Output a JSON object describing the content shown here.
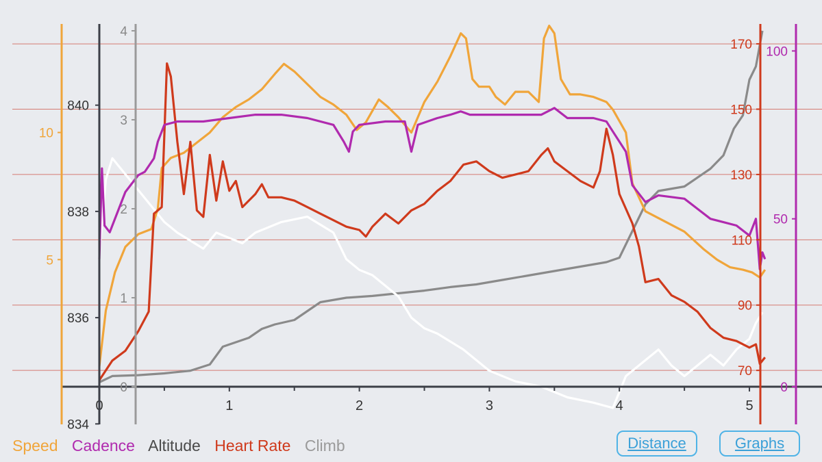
{
  "chart_data": {
    "type": "line",
    "x_axis": {
      "ticks": [
        "0",
        "1",
        "2",
        "3",
        "4",
        "5"
      ],
      "range": [
        0,
        5.2
      ]
    },
    "axes": {
      "speed": {
        "ticks": [
          "5",
          "10"
        ],
        "range": [
          0,
          14
        ]
      },
      "altitude": {
        "ticks": [
          "834",
          "836",
          "838",
          "840"
        ],
        "range": [
          834.7,
          841.4
        ]
      },
      "climb": {
        "ticks": [
          "0",
          "1",
          "2",
          "3",
          "4"
        ],
        "range": [
          0,
          4
        ]
      },
      "heartrate": {
        "ticks": [
          "70",
          "90",
          "110",
          "130",
          "150",
          "170"
        ],
        "range": [
          65,
          174
        ]
      },
      "cadence": {
        "ticks": [
          "0",
          "50",
          "100"
        ],
        "range": [
          0,
          106
        ]
      }
    },
    "series": [
      {
        "name": "Speed",
        "color": "#f0a53a",
        "points": [
          [
            0,
            0.8
          ],
          [
            0.05,
            3
          ],
          [
            0.12,
            4.5
          ],
          [
            0.2,
            5.5
          ],
          [
            0.3,
            6
          ],
          [
            0.4,
            6.2
          ],
          [
            0.45,
            7
          ],
          [
            0.48,
            8.6
          ],
          [
            0.55,
            9
          ],
          [
            0.65,
            9.2
          ],
          [
            0.75,
            9.6
          ],
          [
            0.85,
            10
          ],
          [
            0.95,
            10.6
          ],
          [
            1.05,
            11
          ],
          [
            1.15,
            11.3
          ],
          [
            1.25,
            11.7
          ],
          [
            1.35,
            12.3
          ],
          [
            1.42,
            12.7
          ],
          [
            1.5,
            12.4
          ],
          [
            1.6,
            11.9
          ],
          [
            1.7,
            11.4
          ],
          [
            1.8,
            11.1
          ],
          [
            1.9,
            10.7
          ],
          [
            1.98,
            10.1
          ],
          [
            2.05,
            10.4
          ],
          [
            2.15,
            11.3
          ],
          [
            2.22,
            11
          ],
          [
            2.3,
            10.6
          ],
          [
            2.4,
            10
          ],
          [
            2.5,
            11.2
          ],
          [
            2.6,
            12
          ],
          [
            2.7,
            13
          ],
          [
            2.78,
            13.9
          ],
          [
            2.82,
            13.7
          ],
          [
            2.87,
            12.1
          ],
          [
            2.92,
            11.8
          ],
          [
            3.0,
            11.8
          ],
          [
            3.05,
            11.4
          ],
          [
            3.12,
            11.1
          ],
          [
            3.2,
            11.6
          ],
          [
            3.3,
            11.6
          ],
          [
            3.38,
            11.2
          ],
          [
            3.42,
            13.7
          ],
          [
            3.46,
            14.2
          ],
          [
            3.5,
            13.9
          ],
          [
            3.55,
            12.1
          ],
          [
            3.62,
            11.5
          ],
          [
            3.7,
            11.5
          ],
          [
            3.8,
            11.4
          ],
          [
            3.9,
            11.2
          ],
          [
            3.95,
            10.9
          ],
          [
            4.05,
            10
          ],
          [
            4.1,
            8
          ],
          [
            4.2,
            6.9
          ],
          [
            4.35,
            6.5
          ],
          [
            4.5,
            6.1
          ],
          [
            4.65,
            5.4
          ],
          [
            4.75,
            5
          ],
          [
            4.85,
            4.7
          ],
          [
            4.95,
            4.6
          ],
          [
            5.02,
            4.5
          ],
          [
            5.08,
            4.3
          ],
          [
            5.12,
            4.6
          ]
        ]
      },
      {
        "name": "Cadence",
        "color": "#b02aae",
        "points": [
          [
            0,
            38
          ],
          [
            0.02,
            65
          ],
          [
            0.04,
            48
          ],
          [
            0.08,
            46
          ],
          [
            0.2,
            58
          ],
          [
            0.3,
            63
          ],
          [
            0.35,
            64
          ],
          [
            0.42,
            68
          ],
          [
            0.45,
            73
          ],
          [
            0.5,
            78
          ],
          [
            0.6,
            79
          ],
          [
            0.8,
            79
          ],
          [
            1.0,
            80
          ],
          [
            1.2,
            81
          ],
          [
            1.4,
            81
          ],
          [
            1.6,
            80
          ],
          [
            1.8,
            78
          ],
          [
            1.88,
            73
          ],
          [
            1.92,
            70
          ],
          [
            1.95,
            76
          ],
          [
            2.0,
            78
          ],
          [
            2.2,
            79
          ],
          [
            2.35,
            79
          ],
          [
            2.4,
            70
          ],
          [
            2.45,
            78
          ],
          [
            2.6,
            80
          ],
          [
            2.7,
            81
          ],
          [
            2.78,
            82
          ],
          [
            2.85,
            81
          ],
          [
            3.0,
            81
          ],
          [
            3.2,
            81
          ],
          [
            3.4,
            81
          ],
          [
            3.5,
            83
          ],
          [
            3.6,
            80
          ],
          [
            3.8,
            80
          ],
          [
            3.9,
            79
          ],
          [
            3.95,
            76
          ],
          [
            4.05,
            70
          ],
          [
            4.1,
            60
          ],
          [
            4.2,
            55
          ],
          [
            4.3,
            57
          ],
          [
            4.5,
            56
          ],
          [
            4.6,
            53
          ],
          [
            4.7,
            50
          ],
          [
            4.8,
            49
          ],
          [
            4.9,
            48
          ],
          [
            5.0,
            45
          ],
          [
            5.05,
            50
          ],
          [
            5.08,
            35
          ],
          [
            5.1,
            40
          ],
          [
            5.12,
            38
          ]
        ]
      },
      {
        "name": "Altitude",
        "color": "#ffffff",
        "points": [
          [
            0,
            837.2
          ],
          [
            0.05,
            838.6
          ],
          [
            0.1,
            839.0
          ],
          [
            0.2,
            838.7
          ],
          [
            0.3,
            838.4
          ],
          [
            0.5,
            837.8
          ],
          [
            0.6,
            837.6
          ],
          [
            0.8,
            837.3
          ],
          [
            0.9,
            837.6
          ],
          [
            1.0,
            837.5
          ],
          [
            1.1,
            837.4
          ],
          [
            1.2,
            837.6
          ],
          [
            1.4,
            837.8
          ],
          [
            1.6,
            837.9
          ],
          [
            1.8,
            837.6
          ],
          [
            1.9,
            837.1
          ],
          [
            2.0,
            836.9
          ],
          [
            2.1,
            836.8
          ],
          [
            2.2,
            836.6
          ],
          [
            2.3,
            836.4
          ],
          [
            2.4,
            836.0
          ],
          [
            2.5,
            835.8
          ],
          [
            2.6,
            835.7
          ],
          [
            2.8,
            835.4
          ],
          [
            3.0,
            835.0
          ],
          [
            3.2,
            834.8
          ],
          [
            3.4,
            834.7
          ],
          [
            3.6,
            834.5
          ],
          [
            3.8,
            834.4
          ],
          [
            3.95,
            834.3
          ],
          [
            4.0,
            834.6
          ],
          [
            4.05,
            834.9
          ],
          [
            4.2,
            835.2
          ],
          [
            4.3,
            835.4
          ],
          [
            4.4,
            835.1
          ],
          [
            4.5,
            834.9
          ],
          [
            4.6,
            835.1
          ],
          [
            4.7,
            835.3
          ],
          [
            4.8,
            835.1
          ],
          [
            4.9,
            835.4
          ],
          [
            5.0,
            835.6
          ],
          [
            5.05,
            835.9
          ],
          [
            5.1,
            836.1
          ]
        ]
      },
      {
        "name": "Heart Rate",
        "color": "#cf3a1c",
        "points": [
          [
            0,
            67
          ],
          [
            0.05,
            70
          ],
          [
            0.1,
            73
          ],
          [
            0.2,
            76
          ],
          [
            0.3,
            82
          ],
          [
            0.38,
            88
          ],
          [
            0.42,
            118
          ],
          [
            0.48,
            120
          ],
          [
            0.52,
            164
          ],
          [
            0.55,
            160
          ],
          [
            0.6,
            140
          ],
          [
            0.65,
            124
          ],
          [
            0.7,
            140
          ],
          [
            0.75,
            119
          ],
          [
            0.8,
            117
          ],
          [
            0.85,
            136
          ],
          [
            0.9,
            122
          ],
          [
            0.95,
            134
          ],
          [
            1.0,
            125
          ],
          [
            1.05,
            128
          ],
          [
            1.1,
            120
          ],
          [
            1.2,
            124
          ],
          [
            1.25,
            127
          ],
          [
            1.3,
            123
          ],
          [
            1.4,
            123
          ],
          [
            1.5,
            122
          ],
          [
            1.6,
            120
          ],
          [
            1.7,
            118
          ],
          [
            1.8,
            116
          ],
          [
            1.9,
            114
          ],
          [
            2.0,
            113
          ],
          [
            2.05,
            111
          ],
          [
            2.1,
            114
          ],
          [
            2.2,
            118
          ],
          [
            2.3,
            115
          ],
          [
            2.4,
            119
          ],
          [
            2.5,
            121
          ],
          [
            2.6,
            125
          ],
          [
            2.7,
            128
          ],
          [
            2.8,
            133
          ],
          [
            2.9,
            134
          ],
          [
            3.0,
            131
          ],
          [
            3.1,
            129
          ],
          [
            3.2,
            130
          ],
          [
            3.3,
            131
          ],
          [
            3.4,
            136
          ],
          [
            3.45,
            138
          ],
          [
            3.5,
            134
          ],
          [
            3.6,
            131
          ],
          [
            3.7,
            128
          ],
          [
            3.8,
            126
          ],
          [
            3.85,
            131
          ],
          [
            3.9,
            144
          ],
          [
            3.95,
            136
          ],
          [
            4.0,
            124
          ],
          [
            4.1,
            115
          ],
          [
            4.15,
            108
          ],
          [
            4.2,
            97
          ],
          [
            4.3,
            98
          ],
          [
            4.4,
            93
          ],
          [
            4.5,
            91
          ],
          [
            4.6,
            88
          ],
          [
            4.7,
            83
          ],
          [
            4.8,
            80
          ],
          [
            4.9,
            79
          ],
          [
            5.0,
            77
          ],
          [
            5.05,
            78
          ],
          [
            5.08,
            72
          ],
          [
            5.12,
            74
          ]
        ]
      },
      {
        "name": "Climb",
        "color": "#8a8a8a",
        "points": [
          [
            0,
            0.05
          ],
          [
            0.1,
            0.12
          ],
          [
            0.3,
            0.13
          ],
          [
            0.5,
            0.15
          ],
          [
            0.7,
            0.18
          ],
          [
            0.85,
            0.25
          ],
          [
            0.95,
            0.45
          ],
          [
            1.05,
            0.5
          ],
          [
            1.15,
            0.55
          ],
          [
            1.25,
            0.65
          ],
          [
            1.35,
            0.7
          ],
          [
            1.5,
            0.75
          ],
          [
            1.7,
            0.95
          ],
          [
            1.9,
            1.0
          ],
          [
            2.1,
            1.02
          ],
          [
            2.3,
            1.05
          ],
          [
            2.5,
            1.08
          ],
          [
            2.7,
            1.12
          ],
          [
            2.9,
            1.15
          ],
          [
            3.1,
            1.2
          ],
          [
            3.3,
            1.25
          ],
          [
            3.5,
            1.3
          ],
          [
            3.7,
            1.35
          ],
          [
            3.9,
            1.4
          ],
          [
            4.0,
            1.45
          ],
          [
            4.1,
            1.75
          ],
          [
            4.2,
            2.05
          ],
          [
            4.3,
            2.2
          ],
          [
            4.5,
            2.25
          ],
          [
            4.7,
            2.45
          ],
          [
            4.8,
            2.6
          ],
          [
            4.88,
            2.9
          ],
          [
            4.95,
            3.05
          ],
          [
            5.0,
            3.45
          ],
          [
            5.05,
            3.6
          ],
          [
            5.1,
            4.0
          ]
        ]
      }
    ]
  },
  "legend": {
    "speed": "Speed",
    "cadence": "Cadence",
    "altitude": "Altitude",
    "heart_rate": "Heart Rate",
    "climb": "Climb"
  },
  "buttons": {
    "distance": "Distance",
    "graphs": "Graphs"
  },
  "colors": {
    "speed": "#f0a53a",
    "cadence": "#b02aae",
    "altitude": "#3c3c3c",
    "heart_rate": "#cf3a1c",
    "climb": "#8a8a8a",
    "button": "#3aa0d8"
  }
}
